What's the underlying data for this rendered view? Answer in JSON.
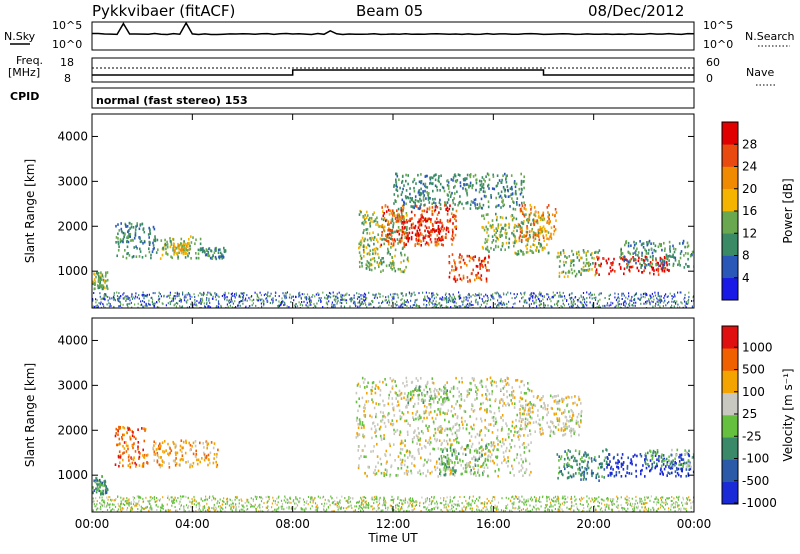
{
  "header": {
    "station": "Pykkvibaer (fitACF)",
    "beam": "Beam 05",
    "date": "08/Dec/2012"
  },
  "top_panels": {
    "nsky_label": "N.Sky",
    "nsky_ticks": [
      "10^5",
      "10^0"
    ],
    "nsearch_label": "N.Search",
    "nsearch_ticks": [
      "10^5",
      "10^0"
    ],
    "freq_label_1": "Freq.",
    "freq_label_2": "[MHz]",
    "freq_ticks": [
      "18",
      "8"
    ],
    "nave_label": "Nave",
    "nave_ticks": [
      "60",
      "0"
    ],
    "cpid_label": "CPID",
    "cpid_text": "normal (fast stereo) 153"
  },
  "chart_data": [
    {
      "type": "heatmap",
      "name": "power",
      "ylabel": "Slant Range [km]",
      "yticks": [
        "1000",
        "2000",
        "3000",
        "4000"
      ],
      "ylim": [
        180,
        4500
      ],
      "xlim": [
        0,
        24
      ],
      "colorbar": {
        "label": "Power [dB]",
        "ticks": [
          "4",
          "8",
          "12",
          "16",
          "20",
          "24",
          "28"
        ],
        "colors": [
          "#1a1ae6",
          "#2a58b8",
          "#3a8a66",
          "#6aa84f",
          "#f4b400",
          "#f08a00",
          "#e84a10",
          "#e00000"
        ]
      },
      "regions": [
        {
          "t0": 0.0,
          "t1": 0.6,
          "r0": 600,
          "r1": 1000,
          "level": 3
        },
        {
          "t0": 0.9,
          "t1": 2.6,
          "r0": 1300,
          "r1": 2100,
          "level": 2
        },
        {
          "t0": 2.7,
          "t1": 4.3,
          "r0": 1300,
          "r1": 1800,
          "level": 3
        },
        {
          "t0": 3.2,
          "t1": 3.9,
          "r0": 1400,
          "r1": 1650,
          "level": 4
        },
        {
          "t0": 4.3,
          "t1": 5.3,
          "r0": 1300,
          "r1": 1550,
          "level": 2
        },
        {
          "t0": 10.6,
          "t1": 12.6,
          "r0": 1000,
          "r1": 2400,
          "level": 3
        },
        {
          "t0": 11.5,
          "t1": 14.5,
          "r0": 1600,
          "r1": 2500,
          "level": 6
        },
        {
          "t0": 12.3,
          "t1": 14.0,
          "r0": 1700,
          "r1": 2200,
          "level": 7
        },
        {
          "t0": 14.2,
          "t1": 15.8,
          "r0": 800,
          "r1": 1400,
          "level": 6
        },
        {
          "t0": 12.0,
          "t1": 17.2,
          "r0": 2400,
          "r1": 3200,
          "level": 2
        },
        {
          "t0": 15.5,
          "t1": 18.2,
          "r0": 1400,
          "r1": 2300,
          "level": 3
        },
        {
          "t0": 17.0,
          "t1": 18.5,
          "r0": 1700,
          "r1": 2500,
          "level": 5
        },
        {
          "t0": 18.5,
          "t1": 20.2,
          "r0": 900,
          "r1": 1500,
          "level": 3
        },
        {
          "t0": 20.0,
          "t1": 23.0,
          "r0": 950,
          "r1": 1350,
          "level": 7
        },
        {
          "t0": 21.0,
          "t1": 24.0,
          "r0": 1100,
          "r1": 1700,
          "level": 2
        }
      ]
    },
    {
      "type": "heatmap",
      "name": "velocity",
      "ylabel": "Slant Range [km]",
      "yticks": [
        "1000",
        "2000",
        "3000",
        "4000"
      ],
      "ylim": [
        180,
        4500
      ],
      "xlim": [
        0,
        24
      ],
      "xlabel": "Time UT",
      "xticks": [
        "00:00",
        "04:00",
        "08:00",
        "12:00",
        "16:00",
        "20:00",
        "00:00"
      ],
      "colorbar": {
        "label": "Velocity [m s⁻¹]",
        "ticks": [
          "1000",
          "500",
          "100",
          "25",
          "-25",
          "-100",
          "-500",
          "-1000"
        ],
        "colors": [
          "#1a2ad6",
          "#2a5aa8",
          "#3a8a6a",
          "#66c040",
          "#c8c8c0",
          "#f4a400",
          "#f06000",
          "#e01010"
        ]
      },
      "regions": [
        {
          "t0": 0.0,
          "t1": 0.6,
          "r0": 600,
          "r1": 1000,
          "level": 2
        },
        {
          "t0": 0.9,
          "t1": 2.2,
          "r0": 1200,
          "r1": 2100,
          "level": 6
        },
        {
          "t0": 2.4,
          "t1": 5.0,
          "r0": 1200,
          "r1": 1800,
          "level": 5
        },
        {
          "t0": 10.5,
          "t1": 17.5,
          "r0": 1000,
          "r1": 3200,
          "level": 4
        },
        {
          "t0": 13.8,
          "t1": 15.8,
          "r0": 1000,
          "r1": 1700,
          "level": 3
        },
        {
          "t0": 12.5,
          "t1": 14.2,
          "r0": 2600,
          "r1": 3000,
          "level": 3
        },
        {
          "t0": 17.0,
          "t1": 19.5,
          "r0": 1900,
          "r1": 2800,
          "level": 4
        },
        {
          "t0": 18.5,
          "t1": 20.5,
          "r0": 900,
          "r1": 1600,
          "level": 2
        },
        {
          "t0": 20.5,
          "t1": 24.0,
          "r0": 1000,
          "r1": 1500,
          "level": 0
        },
        {
          "t0": 22.0,
          "t1": 24.0,
          "r0": 1200,
          "r1": 1600,
          "level": 3
        }
      ]
    }
  ]
}
